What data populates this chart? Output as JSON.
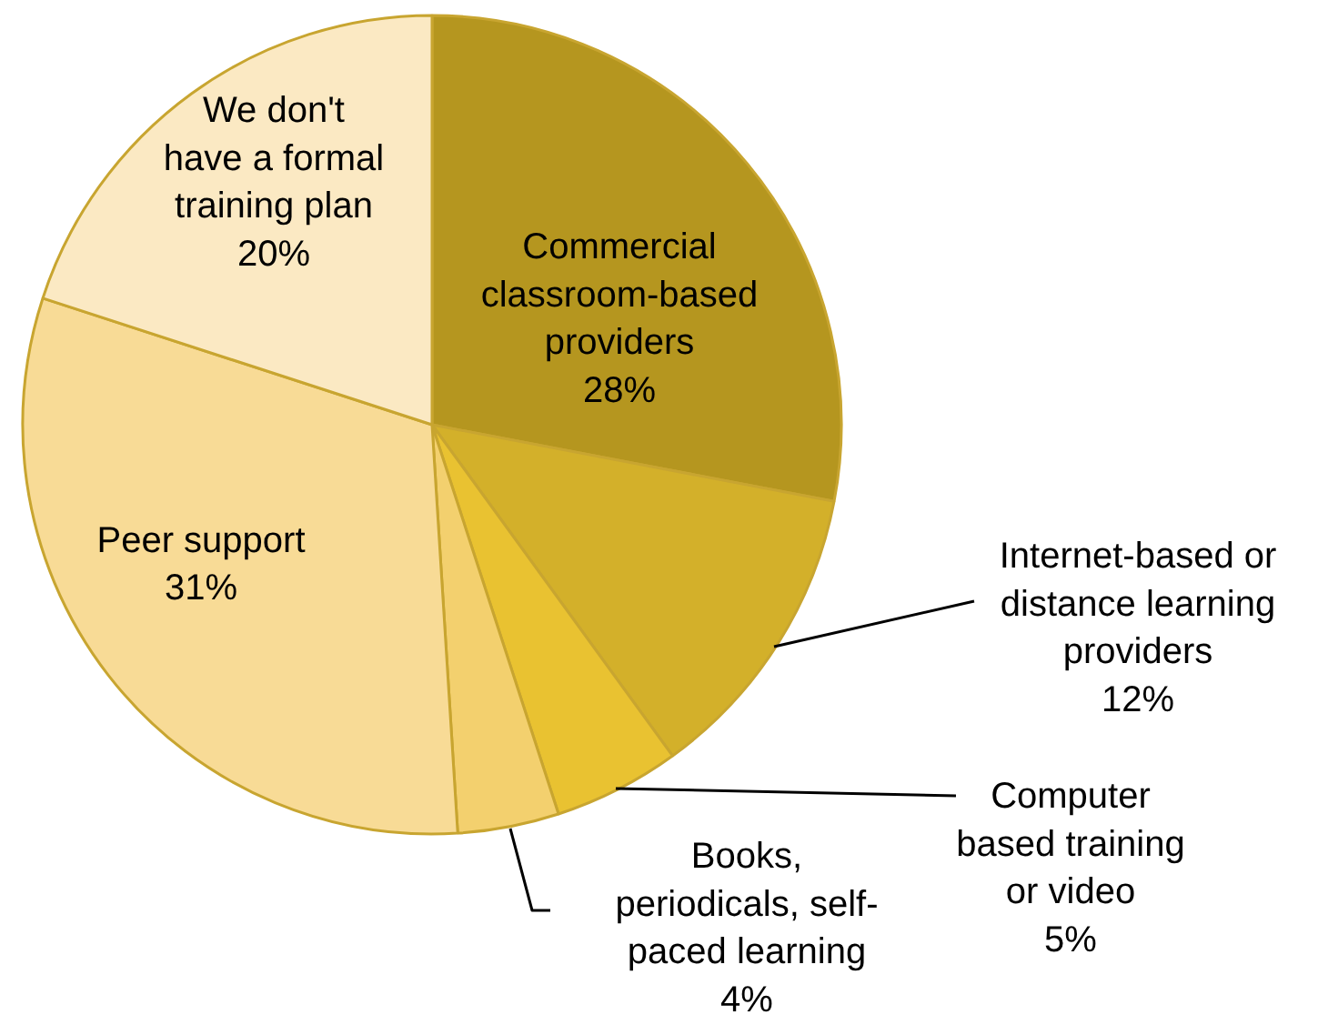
{
  "chart_data": {
    "type": "pie",
    "categories": [
      "Commercial\nclassroom-based\nproviders",
      "Internet-based or\ndistance learning\nproviders",
      "Computer\nbased training\nor video",
      "Books,\nperiodicals, self-\npaced learning",
      "Peer support",
      "We don't\nhave a formal\ntraining plan"
    ],
    "values": [
      28,
      12,
      5,
      4,
      31,
      20
    ],
    "value_labels": [
      "28%",
      "12%",
      "5%",
      "4%",
      "31%",
      "20%"
    ],
    "colors": [
      "#b5961f",
      "#d3b02a",
      "#e9c231",
      "#f3d06e",
      "#f8db96",
      "#fbe9c3"
    ]
  }
}
